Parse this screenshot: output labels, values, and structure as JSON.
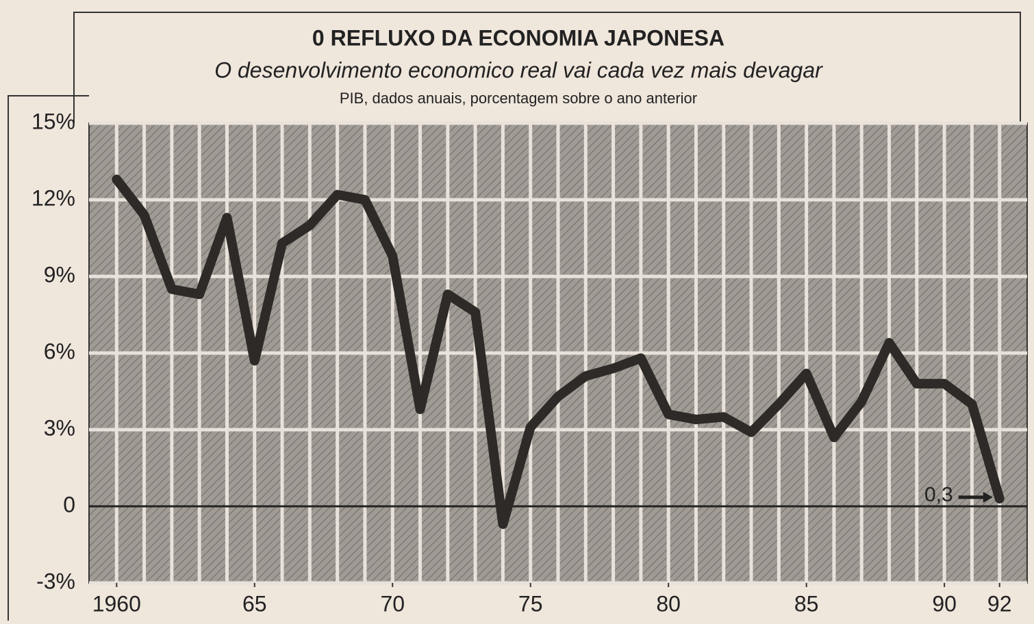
{
  "chart_data": {
    "type": "line",
    "title": "0 REFLUXO DA ECONOMIA JAPONESA",
    "subtitle": "O desenvolvimento economico real vai cada vez mais devagar",
    "note": "PIB, dados anuais, porcentagem sobre o ano anterior",
    "x": [
      1960,
      1961,
      1962,
      1963,
      1964,
      1965,
      1966,
      1967,
      1968,
      1969,
      1970,
      1971,
      1972,
      1973,
      1974,
      1975,
      1976,
      1977,
      1978,
      1979,
      1980,
      1981,
      1982,
      1983,
      1984,
      1985,
      1986,
      1987,
      1988,
      1989,
      1990,
      1991,
      1992
    ],
    "series": [
      {
        "name": "PIB",
        "color": "#2e2a28",
        "values": [
          12.8,
          11.4,
          8.5,
          8.3,
          11.3,
          5.7,
          10.3,
          11.0,
          12.2,
          12.0,
          9.8,
          3.8,
          8.3,
          7.6,
          -0.7,
          3.1,
          4.3,
          5.1,
          5.4,
          5.8,
          3.6,
          3.4,
          3.5,
          2.9,
          4.0,
          5.2,
          2.7,
          4.1,
          6.4,
          4.8,
          4.8,
          4.0,
          0.3
        ]
      }
    ],
    "annotation": "0,3",
    "xlim": [
      1959,
      1993
    ],
    "ylim": [
      -3,
      15
    ],
    "xticks": [
      1960,
      {
        "value": 1965,
        "label": "65"
      },
      {
        "value": 1970,
        "label": "70"
      },
      {
        "value": 1975,
        "label": "75"
      },
      {
        "value": 1980,
        "label": "80"
      },
      {
        "value": 1985,
        "label": "85"
      },
      {
        "value": 1990,
        "label": "90"
      },
      {
        "value": 1992,
        "label": "92"
      }
    ],
    "yticks": [
      {
        "value": -3,
        "label": "-3%"
      },
      0,
      {
        "value": 3,
        "label": "3%"
      },
      {
        "value": 6,
        "label": "6%"
      },
      {
        "value": 9,
        "label": "9%"
      },
      {
        "value": 12,
        "label": "12%"
      },
      {
        "value": 15,
        "label": "15%"
      }
    ],
    "grid": true
  }
}
